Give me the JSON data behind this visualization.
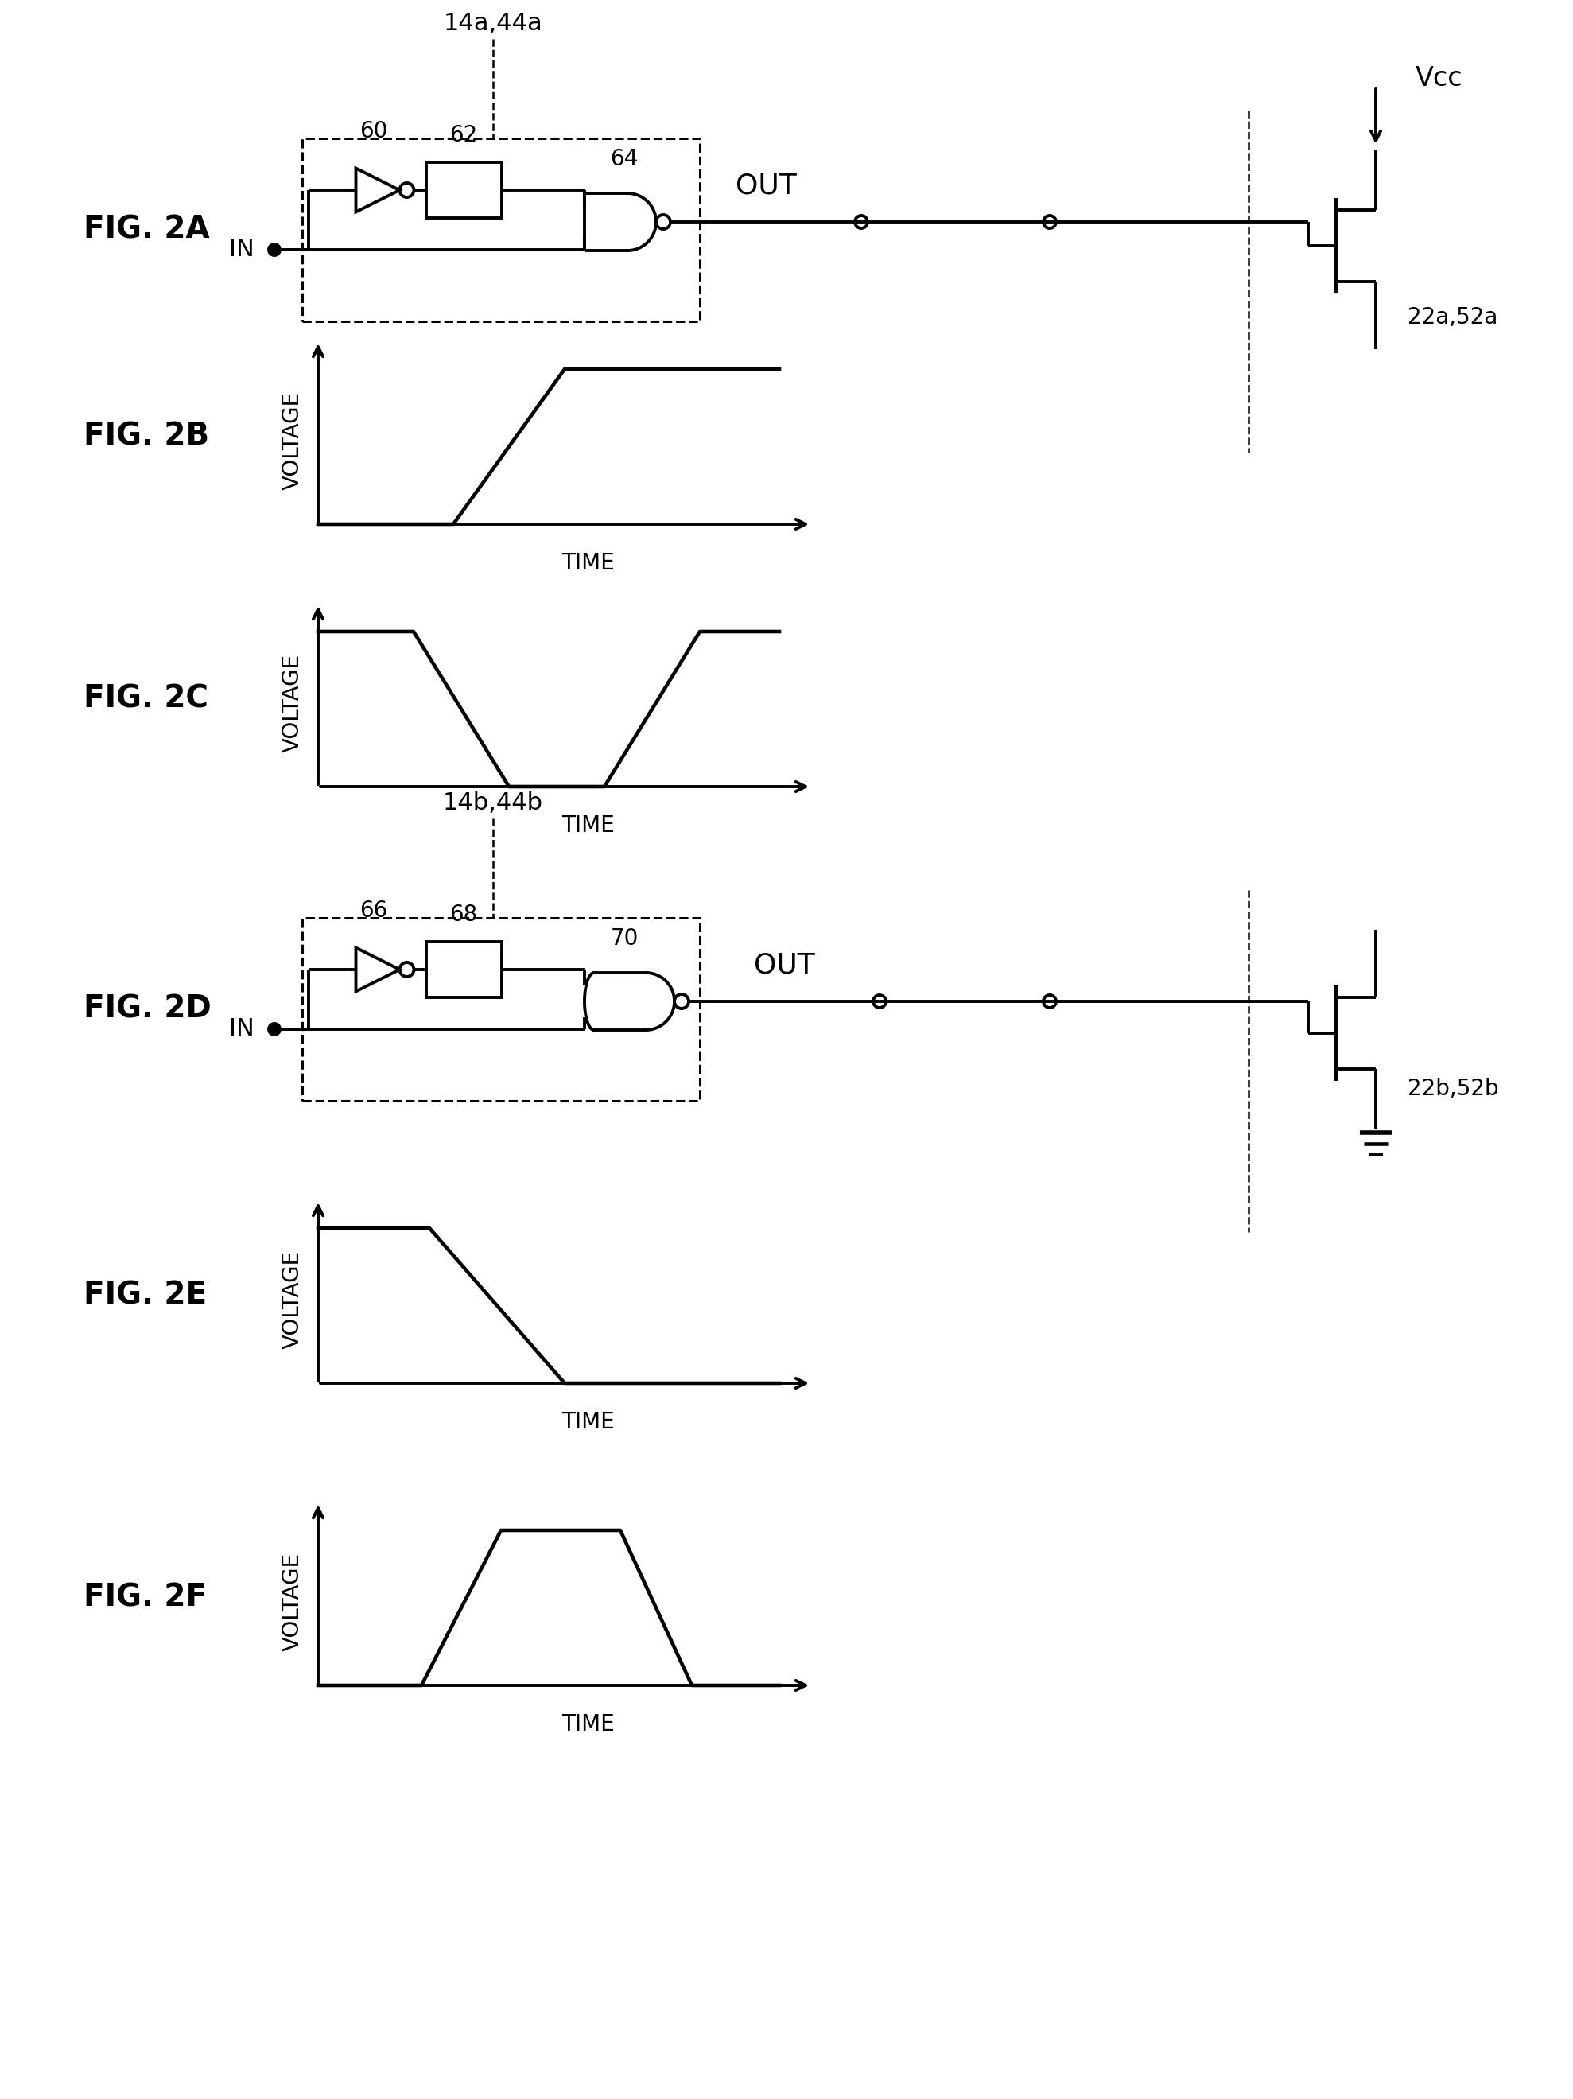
{
  "bg_color": "#ffffff",
  "line_color": "#000000",
  "fig_label_2A": "FIG. 2A",
  "fig_label_2B": "FIG. 2B",
  "fig_label_2C": "FIG. 2C",
  "fig_label_2D": "FIG. 2D",
  "fig_label_2E": "FIG. 2E",
  "fig_label_2F": "FIG. 2F",
  "box_label_2A": "14a,44a",
  "box_label_2D": "14b,44b",
  "comp_60": "60",
  "comp_62": "62",
  "comp_64": "64",
  "comp_66": "66",
  "comp_68": "68",
  "comp_70": "70",
  "trans_label_2A": "22a,52a",
  "trans_label_2D": "22b,52b",
  "vcc_label": "Vcc",
  "out_label": "OUT",
  "in_label": "IN",
  "voltage_label": "VOLTAGE",
  "time_label": "TIME",
  "lw": 2.8,
  "lw_thick": 4.0,
  "fs_fig": 28,
  "fs_label": 22,
  "fs_comp": 20
}
